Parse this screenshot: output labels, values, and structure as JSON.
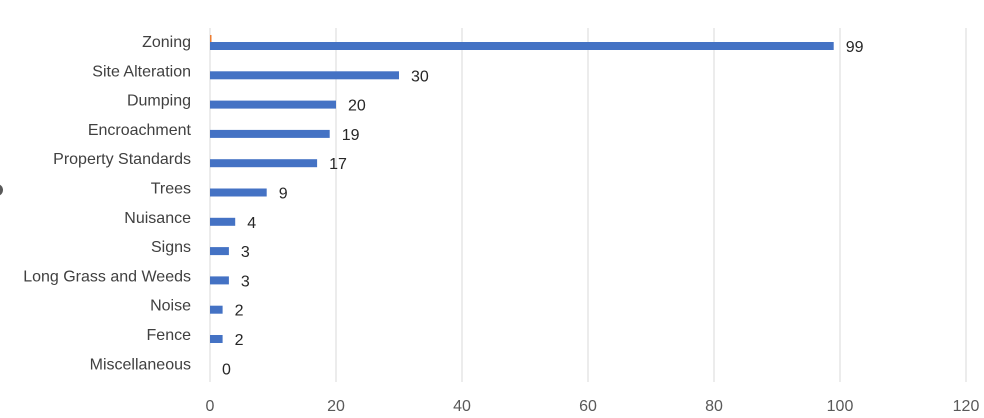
{
  "chart_data": {
    "type": "bar",
    "orientation": "horizontal",
    "categories": [
      "Zoning",
      "Site Alteration",
      "Dumping",
      "Encroachment",
      "Property Standards",
      "Trees",
      "Nuisance",
      "Signs",
      "Long Grass and Weeds",
      "Noise",
      "Fence",
      "Miscellaneous"
    ],
    "series": [
      {
        "values": [
          99,
          30,
          20,
          19,
          17,
          9,
          4,
          3,
          3,
          2,
          2,
          0
        ],
        "color": "#4472c4"
      },
      {
        "values": [
          0.2,
          0,
          0,
          0,
          0,
          0,
          0,
          0,
          0,
          0,
          0,
          0
        ],
        "color": "#ed7d31"
      }
    ],
    "data_labels": [
      "99",
      "30",
      "20",
      "19",
      "17",
      "9",
      "4",
      "3",
      "3",
      "2",
      "2",
      "0"
    ],
    "xlim": [
      0,
      120
    ],
    "x_ticks": [
      "0",
      "20",
      "40",
      "60",
      "80",
      "100",
      "120"
    ],
    "grid": true,
    "title": "",
    "xlabel": "",
    "ylabel": ""
  }
}
